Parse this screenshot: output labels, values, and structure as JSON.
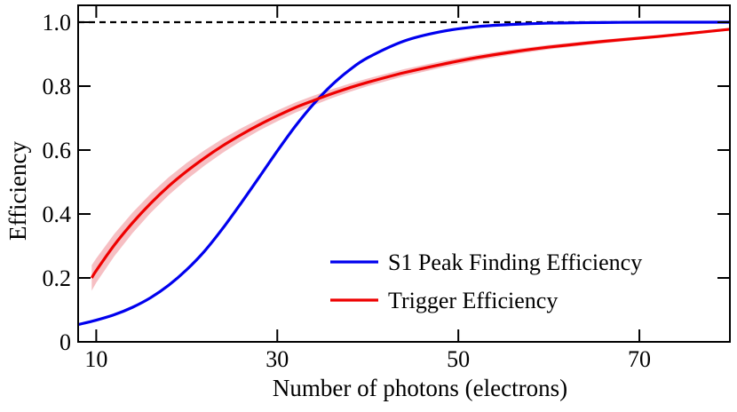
{
  "chart_data": {
    "type": "line",
    "title": "",
    "xlabel": "Number of photons (electrons)",
    "ylabel": "Efficiency",
    "xlim": [
      8,
      80
    ],
    "ylim": [
      0,
      1.05
    ],
    "x_ticks": [
      10,
      30,
      50,
      70
    ],
    "x_tick_labels": [
      "10",
      "30",
      "50",
      "70"
    ],
    "y_ticks": [
      0,
      0.2,
      0.4,
      0.6,
      0.8,
      1.0
    ],
    "y_tick_labels": [
      "0",
      "0.2",
      "0.4",
      "0.6",
      "0.8",
      "1.0"
    ],
    "reference_line": {
      "y": 1.0,
      "style": "dashed",
      "color": "#000000"
    },
    "legend_position": "bottom-right",
    "series": [
      {
        "name": "S1 Peak Finding Efficiency",
        "color": "#0000ee",
        "x": [
          8,
          10,
          12,
          14,
          16,
          18,
          20,
          22,
          24,
          26,
          28,
          30,
          32,
          34,
          36,
          38,
          40,
          44,
          48,
          52,
          56,
          60,
          66,
          72,
          80
        ],
        "y": [
          0.054,
          0.068,
          0.085,
          0.108,
          0.138,
          0.177,
          0.226,
          0.285,
          0.356,
          0.434,
          0.515,
          0.597,
          0.675,
          0.744,
          0.803,
          0.851,
          0.889,
          0.941,
          0.97,
          0.986,
          0.993,
          0.997,
          0.999,
          1.0,
          1.0
        ]
      },
      {
        "name": "Trigger Efficiency",
        "color": "#ee0000",
        "band_color": "#f4b4b8",
        "x": [
          9.5,
          10,
          12,
          14,
          16,
          18,
          20,
          22,
          24,
          26,
          28,
          30,
          32,
          34,
          36,
          38,
          40,
          44,
          48,
          52,
          56,
          60,
          66,
          72,
          80
        ],
        "y": [
          0.2,
          0.223,
          0.303,
          0.372,
          0.433,
          0.487,
          0.534,
          0.576,
          0.614,
          0.648,
          0.679,
          0.707,
          0.733,
          0.755,
          0.776,
          0.795,
          0.812,
          0.842,
          0.867,
          0.889,
          0.907,
          0.922,
          0.94,
          0.955,
          0.978
        ],
        "band_half_width": [
          0.04,
          0.038,
          0.035,
          0.032,
          0.03,
          0.028,
          0.026,
          0.024,
          0.022,
          0.02,
          0.018,
          0.017,
          0.016,
          0.015,
          0.014,
          0.013,
          0.012,
          0.011,
          0.01,
          0.009,
          0.008,
          0.007,
          0.006,
          0.005,
          0.004
        ]
      }
    ]
  }
}
